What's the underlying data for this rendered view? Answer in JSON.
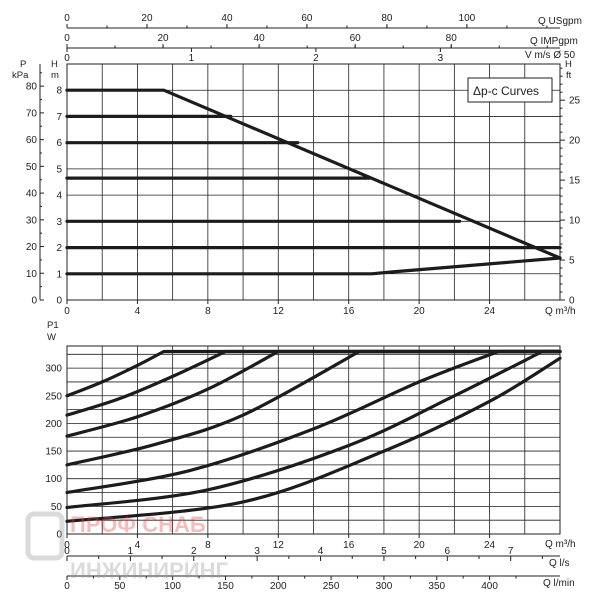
{
  "chart_data": [
    {
      "type": "line",
      "title": "",
      "legend_label": "Δp-c Curves",
      "legend_position": "top-right",
      "grid": true,
      "xlabel": "Q m³/h",
      "xlim": [
        0,
        28
      ],
      "x_ticks": [
        0,
        4,
        8,
        12,
        16,
        20,
        24
      ],
      "ylabel_left": "H m",
      "ylim": [
        0,
        9
      ],
      "y_ticks": [
        0,
        1,
        2,
        3,
        4,
        5,
        6,
        7,
        8
      ],
      "pressure_axis": {
        "label_top": "P",
        "label_unit": "kPa",
        "ticks": [
          0,
          10,
          20,
          30,
          40,
          50,
          60,
          70,
          80
        ]
      },
      "feet_axis": {
        "label_top": "H",
        "label_unit": "ft",
        "ticks": [
          0,
          5,
          10,
          15,
          20,
          25
        ]
      },
      "top_axes": [
        {
          "label": "Q USgpm",
          "ticks": [
            0,
            20,
            40,
            60,
            80,
            100
          ]
        },
        {
          "label": "Q IMPgpm",
          "ticks": [
            0,
            20,
            40,
            60,
            80
          ]
        },
        {
          "label": "V m/s Ø 50",
          "ticks": [
            0,
            1,
            2,
            3
          ]
        }
      ],
      "series": [
        {
          "points": [
            [
              0,
              8
            ],
            [
              5.5,
              8
            ],
            [
              28,
              1.6
            ]
          ]
        },
        {
          "points": [
            [
              0,
              7
            ],
            [
              9.3,
              7
            ]
          ]
        },
        {
          "points": [
            [
              0,
              6
            ],
            [
              13.1,
              6
            ]
          ]
        },
        {
          "points": [
            [
              0,
              4.65
            ],
            [
              17.2,
              4.65
            ]
          ]
        },
        {
          "points": [
            [
              0,
              3
            ],
            [
              22.3,
              3
            ]
          ]
        },
        {
          "points": [
            [
              0,
              2
            ],
            [
              28,
              2
            ]
          ]
        },
        {
          "points": [
            [
              0,
              1
            ],
            [
              17.3,
              1
            ],
            [
              18.5,
              1.07
            ],
            [
              28,
              1.6
            ]
          ]
        }
      ]
    },
    {
      "type": "line",
      "title": "",
      "grid": true,
      "xlabel": "Q m³/h",
      "xlim": [
        0,
        28
      ],
      "x_ticks": [
        0,
        4,
        8,
        12,
        16,
        20,
        24
      ],
      "ylabel": "P1 W",
      "ylabel_top": "P1",
      "ylabel_unit": "W",
      "ylim": [
        0,
        340
      ],
      "y_ticks": [
        0,
        50,
        100,
        150,
        200,
        250,
        300
      ],
      "bottom_axes": [
        {
          "label": "Q l/s",
          "ticks": [
            0,
            1,
            2,
            3,
            4,
            5,
            6,
            7
          ]
        },
        {
          "label": "Q l/min",
          "ticks": [
            0,
            50,
            100,
            150,
            200,
            250,
            300,
            350,
            400
          ]
        }
      ],
      "series": [
        {
          "points": [
            [
              0,
              250
            ],
            [
              2,
              275
            ],
            [
              4,
              305
            ],
            [
              5.5,
              330
            ],
            [
              28,
              330
            ]
          ]
        },
        {
          "points": [
            [
              0,
              215
            ],
            [
              3,
              245
            ],
            [
              6,
              285
            ],
            [
              9,
              330
            ],
            [
              28,
              330
            ]
          ]
        },
        {
          "points": [
            [
              0,
              177
            ],
            [
              4,
              212
            ],
            [
              8,
              262
            ],
            [
              12,
              330
            ],
            [
              28,
              330
            ]
          ]
        },
        {
          "points": [
            [
              0,
              125
            ],
            [
              5,
              162
            ],
            [
              10,
              215
            ],
            [
              16.6,
              330
            ],
            [
              28,
              330
            ]
          ]
        },
        {
          "points": [
            [
              0,
              75
            ],
            [
              7,
              115
            ],
            [
              14,
              190
            ],
            [
              20,
              275
            ],
            [
              24.5,
              330
            ],
            [
              28,
              330
            ]
          ]
        },
        {
          "points": [
            [
              0,
              48
            ],
            [
              8,
              80
            ],
            [
              16,
              160
            ],
            [
              22,
              250
            ],
            [
              27,
              330
            ],
            [
              28,
              330
            ]
          ]
        },
        {
          "points": [
            [
              0,
              23
            ],
            [
              10,
              58
            ],
            [
              18,
              150
            ],
            [
              24,
              240
            ],
            [
              28,
              318
            ]
          ]
        }
      ]
    }
  ],
  "watermark": {
    "text_line1": "ПРОФ СНАБ",
    "text_line2": "ИНЖИНИРИНГ"
  }
}
